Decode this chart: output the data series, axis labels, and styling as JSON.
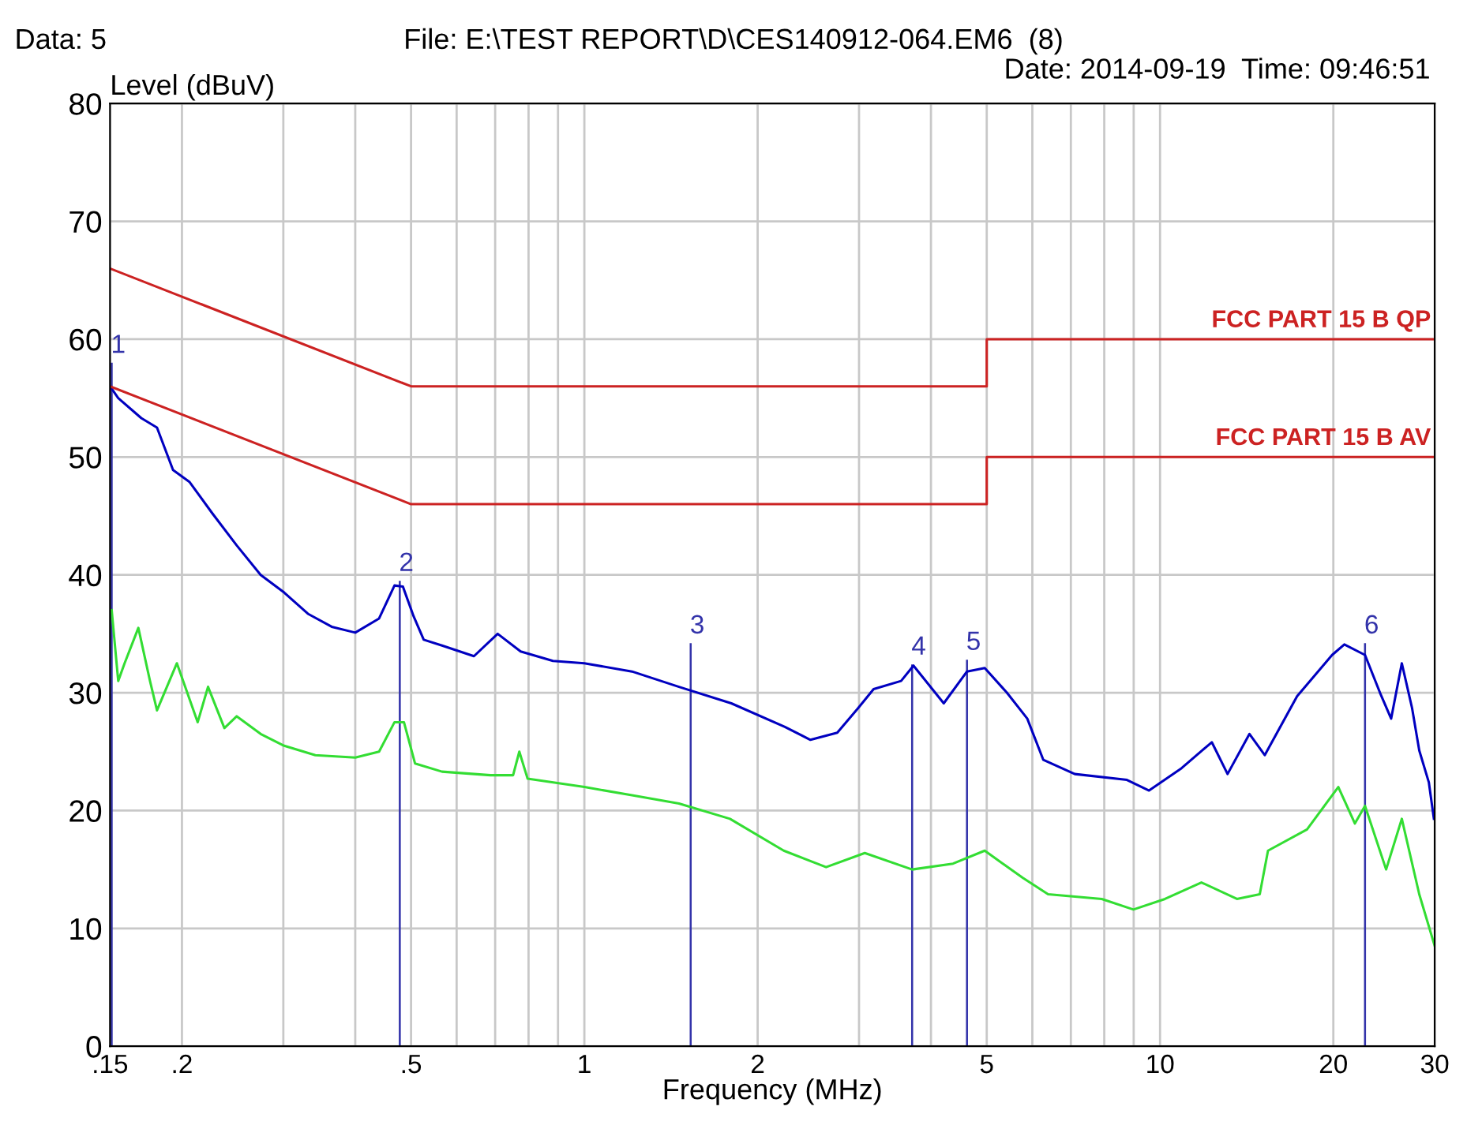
{
  "chart_data": {
    "type": "line",
    "title": "File: E:\\TEST REPORT\\D\\CES140912-064.EM6  (8)",
    "subtitle": "Date: 2014-09-19  Time: 09:46:51",
    "annotations": [
      "Data: 5",
      {
        "text": "1",
        "x": 0.151,
        "y": 58
      },
      {
        "text": "2",
        "x": 0.478,
        "y": 39.5
      },
      {
        "text": "3",
        "x": 1.53,
        "y": 34.2
      },
      {
        "text": "4",
        "x": 3.71,
        "y": 32.4
      },
      {
        "text": "5",
        "x": 4.62,
        "y": 32.8
      },
      {
        "text": "6",
        "x": 22.7,
        "y": 34.2
      }
    ],
    "xlabel": "Frequency (MHz)",
    "ylabel": "Level (dBuV)",
    "log": "x",
    "xlim": [
      0.15,
      30
    ],
    "xticks": [
      {
        "value": 0.15,
        "label": ".15"
      },
      {
        "value": 0.2,
        "label": ".2"
      },
      {
        "value": 0.3,
        "label": null
      },
      {
        "value": 0.4,
        "label": null
      },
      {
        "value": 0.5,
        "label": ".5"
      },
      {
        "value": 0.6,
        "label": null
      },
      {
        "value": 0.7,
        "label": null
      },
      {
        "value": 0.8,
        "label": null
      },
      {
        "value": 0.9,
        "label": null
      },
      1,
      2,
      {
        "value": 3,
        "label": null
      },
      {
        "value": 4,
        "label": null
      },
      5,
      {
        "value": 6,
        "label": null
      },
      {
        "value": 7,
        "label": null
      },
      {
        "value": 8,
        "label": null
      },
      {
        "value": 9,
        "label": null
      },
      10,
      20,
      30
    ],
    "ylim": [
      0,
      80
    ],
    "yticks": [
      0,
      10,
      20,
      30,
      40,
      50,
      60,
      70,
      80
    ],
    "grid": true,
    "legend": false,
    "series": [
      {
        "color": "#33dd33",
        "x": [
          0.151,
          0.155,
          0.159,
          0.168,
          0.176,
          0.181,
          0.196,
          0.213,
          0.222,
          0.237,
          0.249,
          0.274,
          0.301,
          0.341,
          0.4,
          0.44,
          0.468,
          0.486,
          0.508,
          0.566,
          0.687,
          0.752,
          0.771,
          0.797,
          1.0,
          1.21,
          1.46,
          1.79,
          2.22,
          2.63,
          3.07,
          3.71,
          4.37,
          4.96,
          5.77,
          6.39,
          7.92,
          8.99,
          10.2,
          11.8,
          13.6,
          14.9,
          15.4,
          18.0,
          20.4,
          21.8,
          22.7,
          24.7,
          26.3,
          28.2,
          30
        ],
        "values": [
          37,
          31,
          32.5,
          35.5,
          31,
          28.5,
          32.5,
          27.5,
          30.5,
          27,
          28,
          26.5,
          25.5,
          24.7,
          24.5,
          25,
          27.5,
          27.5,
          24,
          23.3,
          23,
          23,
          25,
          22.7,
          22,
          21.3,
          20.6,
          19.3,
          16.6,
          15.2,
          16.4,
          15,
          15.5,
          16.6,
          14.3,
          12.9,
          12.5,
          11.6,
          12.5,
          13.9,
          12.5,
          12.9,
          16.6,
          18.4,
          22,
          18.9,
          20.4,
          15,
          19.3,
          12.9,
          8.5
        ]
      },
      {
        "color": "#0000c0",
        "x": [
          0.15,
          0.155,
          0.17,
          0.181,
          0.193,
          0.206,
          0.226,
          0.249,
          0.274,
          0.301,
          0.331,
          0.364,
          0.4,
          0.44,
          0.468,
          0.484,
          0.505,
          0.526,
          0.566,
          0.643,
          0.707,
          0.775,
          0.882,
          1.0,
          1.21,
          1.46,
          1.8,
          2.23,
          2.47,
          2.75,
          2.99,
          3.18,
          3.55,
          3.73,
          4.21,
          4.62,
          4.96,
          5.42,
          5.88,
          6.27,
          7.11,
          8.76,
          9.57,
          10.9,
          12.3,
          13.1,
          14.3,
          15.2,
          17.3,
          19.9,
          20.9,
          22.7,
          24.1,
          25.2,
          26.3,
          27.4,
          28.2,
          29.3,
          29.9
        ],
        "values": [
          56,
          55,
          53.3,
          52.5,
          48.9,
          47.9,
          45.2,
          42.5,
          40,
          38.5,
          36.7,
          35.6,
          35.1,
          36.3,
          39.1,
          39,
          36.5,
          34.5,
          34,
          33.1,
          35,
          33.5,
          32.7,
          32.5,
          31.8,
          30.5,
          29.1,
          27.1,
          26,
          26.6,
          28.7,
          30.3,
          31,
          32.3,
          29.1,
          31.8,
          32.1,
          30,
          27.8,
          24.3,
          23.1,
          22.6,
          21.7,
          23.6,
          25.8,
          23.1,
          26.5,
          24.7,
          29.7,
          33.2,
          34.1,
          33.2,
          30,
          27.8,
          32.5,
          28.7,
          25.1,
          22.4,
          19.3
        ]
      },
      {
        "name": "FCC PART 15 B QP",
        "color": "#cc2222",
        "x": [
          0.15,
          0.5,
          5,
          5,
          30
        ],
        "values": [
          66,
          56,
          56,
          60,
          60
        ]
      },
      {
        "name": "FCC PART 15 B AV",
        "color": "#cc2222",
        "x": [
          0.15,
          0.5,
          5,
          5,
          30
        ],
        "values": [
          56,
          46,
          46,
          50,
          50
        ]
      },
      {
        "type": "bar",
        "color": "#3333aa",
        "x": [
          0.151,
          0.478,
          1.53,
          3.71,
          4.62,
          22.7
        ],
        "values": [
          58,
          39.5,
          34.2,
          32.4,
          32.8,
          34.2
        ]
      }
    ]
  }
}
